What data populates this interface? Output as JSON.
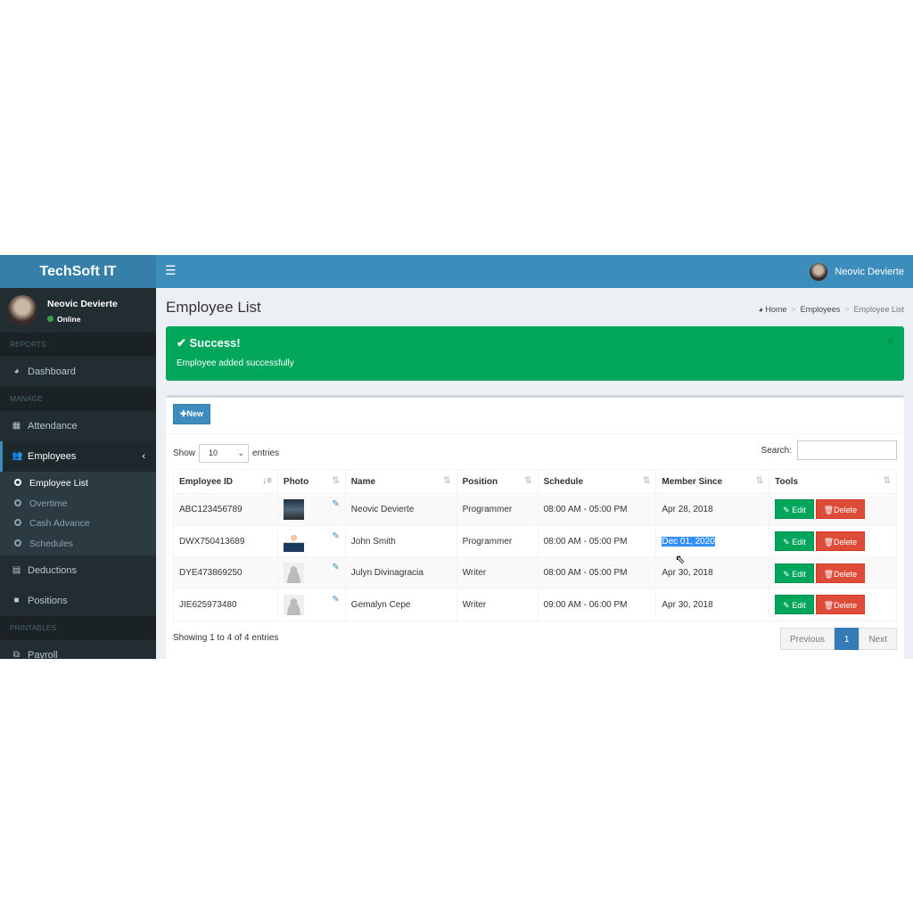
{
  "app": {
    "brand": "TechSoft IT",
    "user_name": "Neovic Devierte",
    "user_status": "Online"
  },
  "sidebar": {
    "headers": [
      "REPORTS",
      "MANAGE",
      "PRINTABLES"
    ],
    "items": {
      "dashboard": "Dashboard",
      "attendance": "Attendance",
      "employees": "Employees",
      "deductions": "Deductions",
      "positions": "Positions",
      "payroll": "Payroll"
    },
    "sub": [
      "Employee List",
      "Overtime",
      "Cash Advance",
      "Schedules"
    ]
  },
  "page": {
    "title": "Employee List",
    "breadcrumb": [
      "Home",
      "Employees",
      "Employee List"
    ]
  },
  "alert": {
    "title": "Success!",
    "message": "Employee added successfully",
    "close": "×",
    "color": "#00a65a"
  },
  "toolbar": {
    "new_label": "New",
    "show_label": "Show",
    "entries_value": "10",
    "entries_label": "entries",
    "search_label": "Search:",
    "search_value": ""
  },
  "table": {
    "headers": [
      "Employee ID",
      "Photo",
      "Name",
      "Position",
      "Schedule",
      "Member Since",
      "Tools"
    ],
    "rows": [
      {
        "id": "ABC123456789",
        "name": "Neovic Devierte",
        "position": "Programmer",
        "schedule": "08:00 AM - 05:00 PM",
        "since": "Apr 28, 2018"
      },
      {
        "id": "DWX750413689",
        "name": "John Smith",
        "position": "Programmer",
        "schedule": "08:00 AM - 05:00 PM",
        "since": "Dec 01, 2020"
      },
      {
        "id": "DYE473869250",
        "name": "Julyn Divinagracia",
        "position": "Writer",
        "schedule": "08:00 AM - 05:00 PM",
        "since": "Apr 30, 2018"
      },
      {
        "id": "JIE625973480",
        "name": "Gemalyn Cepe",
        "position": "Writer",
        "schedule": "09:00 AM - 06:00 PM",
        "since": "Apr 30, 2018"
      }
    ],
    "edit_label": "Edit",
    "delete_label": "Delete"
  },
  "footer": {
    "info": "Showing 1 to 4 of 4 entries",
    "previous": "Previous",
    "page": "1",
    "next": "Next"
  }
}
